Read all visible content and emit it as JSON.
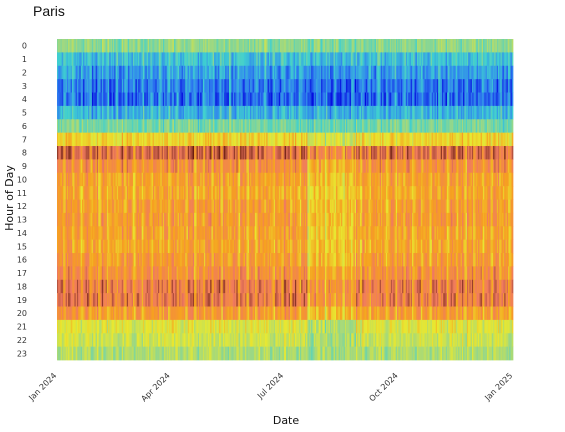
{
  "chart_data": {
    "type": "heatmap",
    "title": "Paris",
    "xlabel": "Date",
    "ylabel": "Hour of Day",
    "x_range": [
      "2024-01-01",
      "2025-01-01"
    ],
    "x_ticks": [
      {
        "date": "2024-01-01",
        "label": "Jan 2024"
      },
      {
        "date": "2024-04-01",
        "label": "Apr 2024"
      },
      {
        "date": "2024-07-01",
        "label": "Jul 2024"
      },
      {
        "date": "2024-10-01",
        "label": "Oct 2024"
      },
      {
        "date": "2025-01-01",
        "label": "Jan 2025"
      }
    ],
    "hours": [
      "0",
      "1",
      "2",
      "3",
      "4",
      "5",
      "6",
      "7",
      "8",
      "9",
      "10",
      "11",
      "12",
      "13",
      "14",
      "15",
      "16",
      "17",
      "18",
      "19",
      "20",
      "21",
      "22",
      "23"
    ],
    "hourly_level": [
      0.4,
      0.25,
      0.18,
      0.12,
      0.1,
      0.22,
      0.36,
      0.62,
      0.9,
      0.8,
      0.74,
      0.72,
      0.75,
      0.76,
      0.74,
      0.73,
      0.76,
      0.8,
      0.86,
      0.86,
      0.76,
      0.56,
      0.52,
      0.46
    ],
    "colorscale": [
      "#0000dd",
      "#2f7ff0",
      "#3fd0d0",
      "#a0d880",
      "#e8e830",
      "#f6a020",
      "#f07a60",
      "#6a1e10"
    ],
    "grid": false,
    "legend": "none"
  }
}
